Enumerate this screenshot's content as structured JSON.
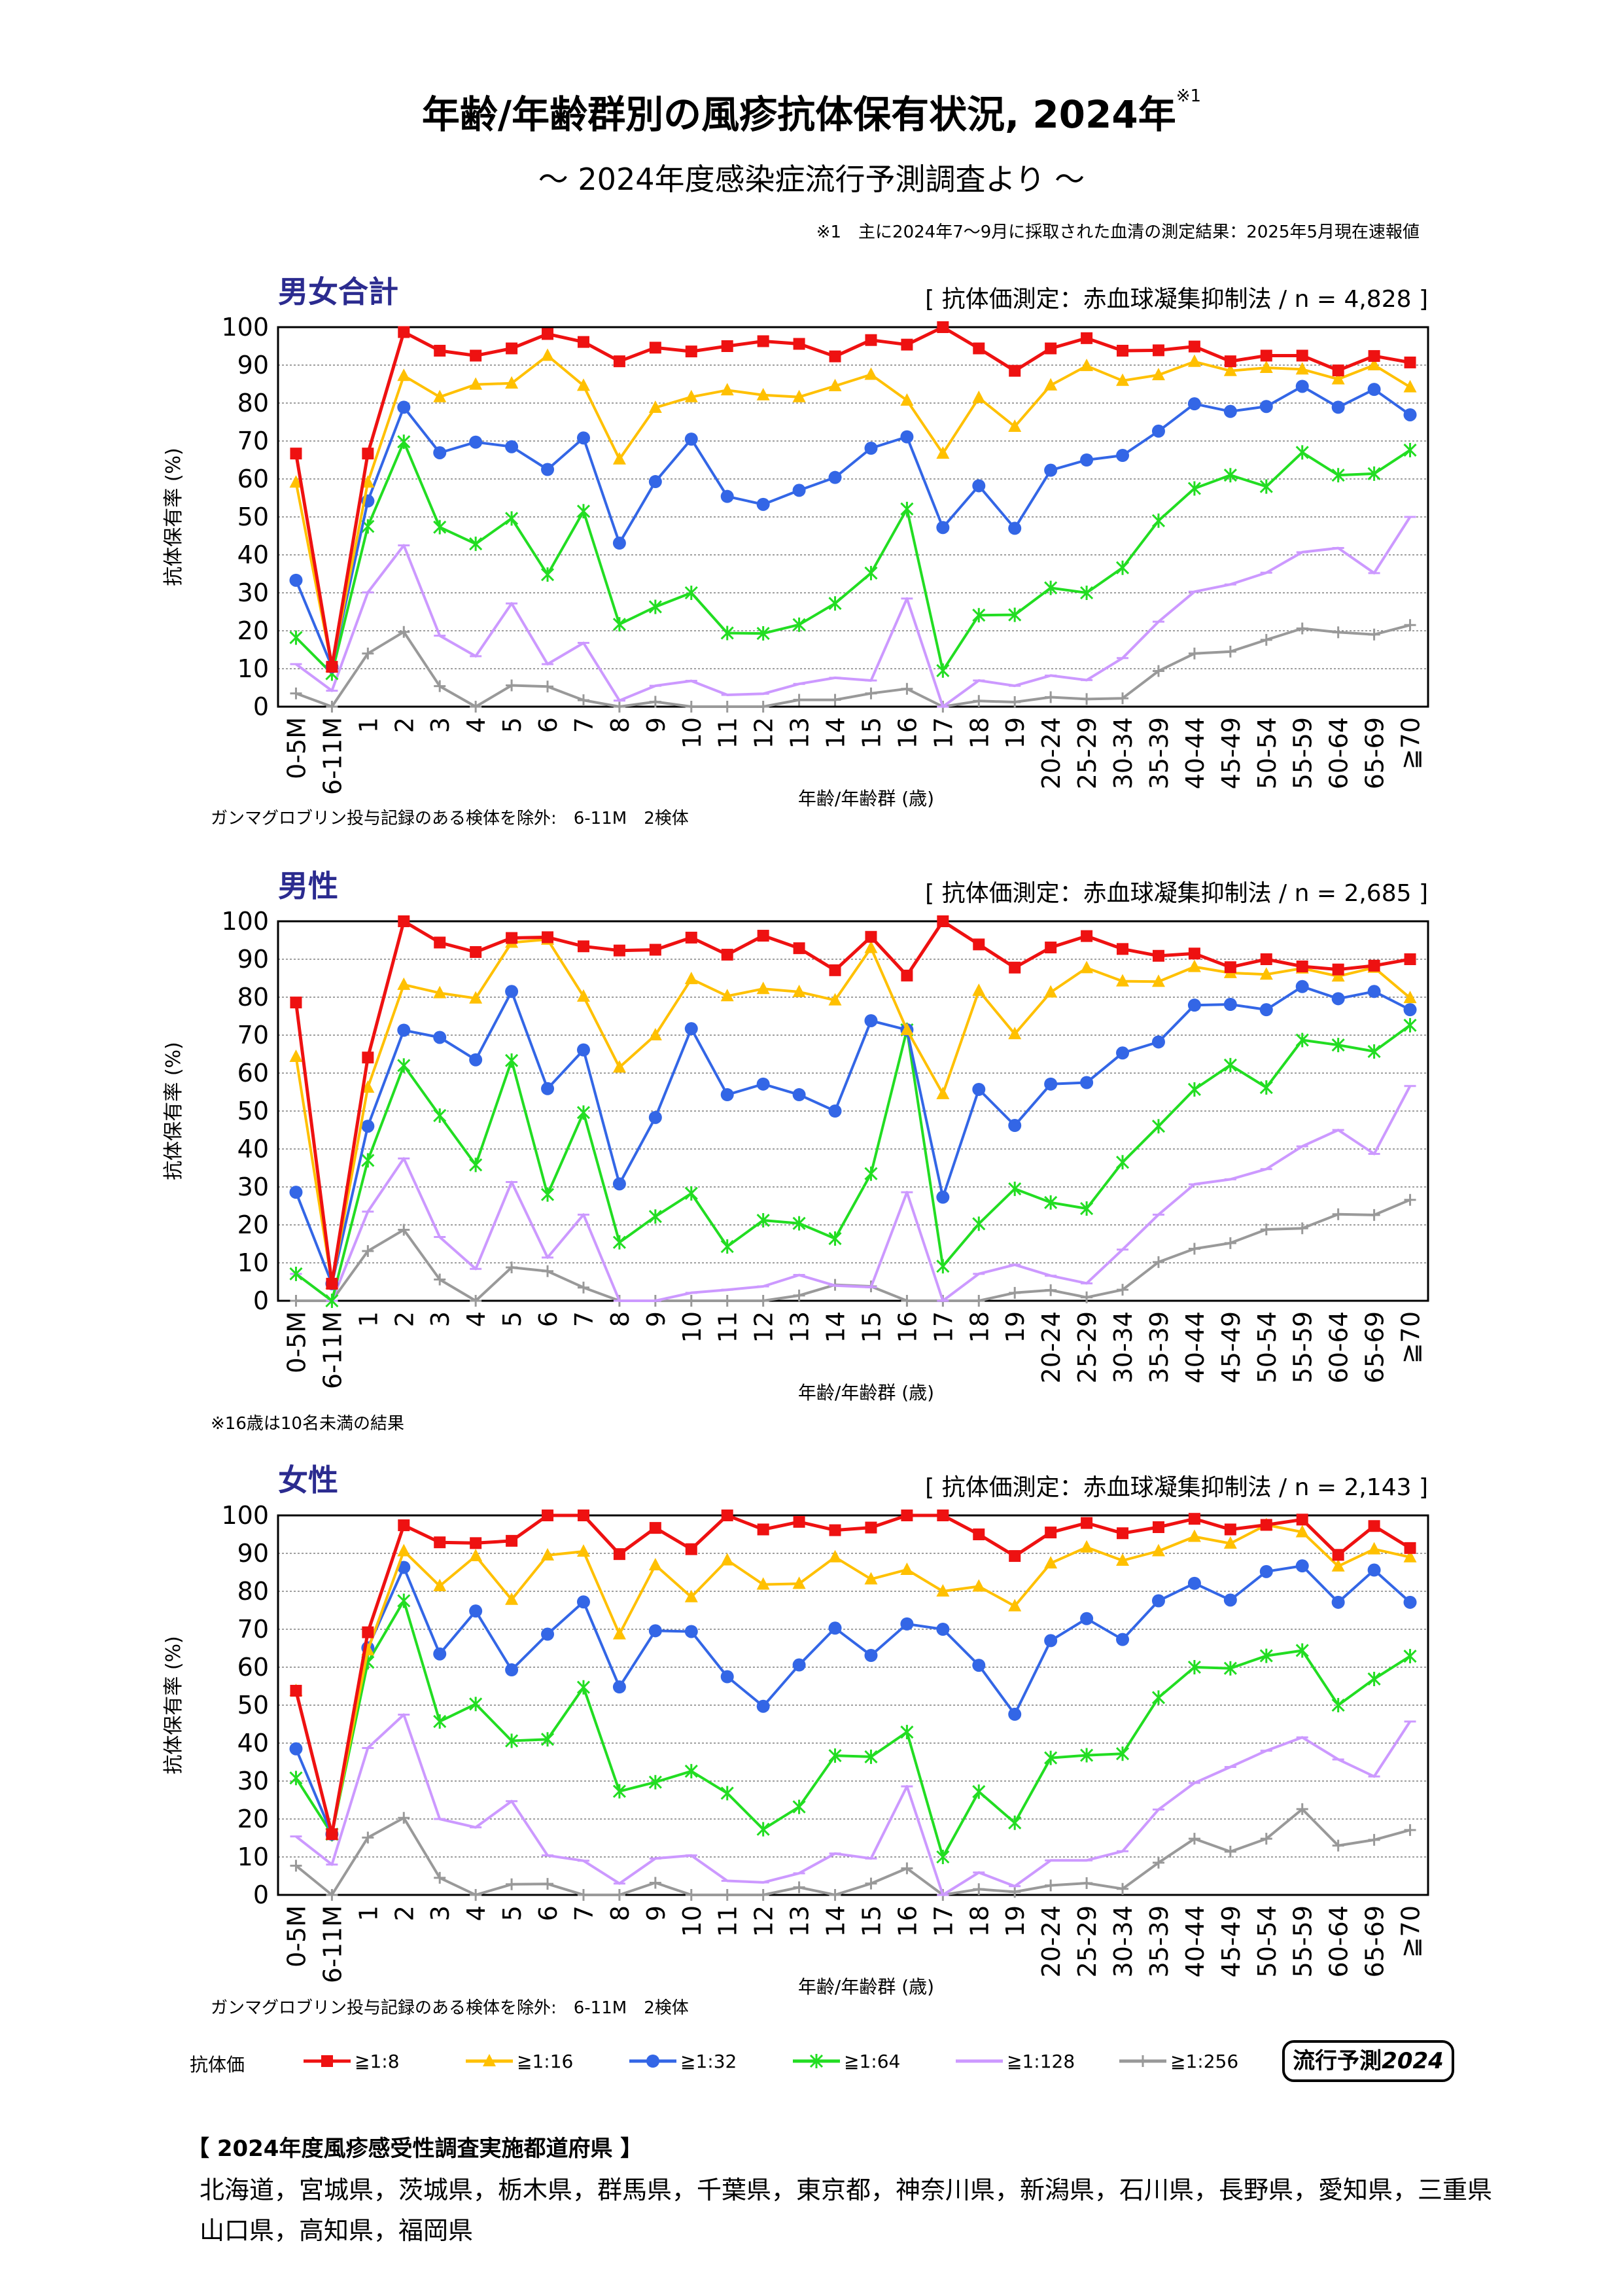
{
  "title": "年齢/年齢群別の風疹抗体保有状況, 2024年",
  "title_note_mark": "※1",
  "subtitle": "～ 2024年度感染症流行予測調査より ～",
  "note": "※1　主に2024年7～9月に採取された血清の測定結果：2025年5月現在速報値",
  "colors": {
    "s8": "#ee1111",
    "s16": "#ffc000",
    "s32": "#3366e6",
    "s64": "#22dd22",
    "s128": "#cc99ff",
    "s256": "#999999",
    "panel_title": "#2b2b8f"
  },
  "legend": {
    "title": "抗体価",
    "items": [
      "≧1:8",
      "≧1:16",
      "≧1:32",
      "≧1:64",
      "≧1:128",
      "≧1:256"
    ]
  },
  "badge": {
    "text": "流行予測",
    "year": "2024"
  },
  "prefectures": {
    "heading": "【 2024年度風疹感受性調査実施都道府県 】",
    "line1": "北海道，宮城県，茨城県，栃木県，群馬県，千葉県，東京都，神奈川県，新潟県，石川県，長野県，愛知県，三重県",
    "line2": "山口県，高知県，福岡県"
  },
  "chart_data": [
    {
      "type": "line",
      "title": "男女合計",
      "method": "[ 抗体価測定：赤血球凝集抑制法 / n = 4,828 ]",
      "xlabel": "年齢/年齢群 (歳)",
      "ylabel": "抗体保有率 (%)",
      "ylim": [
        0,
        100
      ],
      "yticks": [
        0,
        10,
        20,
        30,
        40,
        50,
        60,
        70,
        80,
        90,
        100
      ],
      "grid": true,
      "footnote": "ガンマグロブリン投与記録のある検体を除外:　6-11M　2検体",
      "categories": [
        "0-5M",
        "6-11M",
        "1",
        "2",
        "3",
        "4",
        "5",
        "6",
        "7",
        "8",
        "9",
        "10",
        "11",
        "12",
        "13",
        "14",
        "15",
        "16",
        "17",
        "18",
        "19",
        "20-24",
        "25-29",
        "30-34",
        "35-39",
        "40-44",
        "45-49",
        "50-54",
        "55-59",
        "60-64",
        "65-69",
        "≧70"
      ],
      "series": [
        {
          "name": "≧1:8",
          "values": [
            66.7,
            10.5,
            66.7,
            98.7,
            93.8,
            92.5,
            94.4,
            98.2,
            96.1,
            91,
            94.6,
            93.6,
            95,
            96.3,
            95.6,
            92.3,
            96.6,
            95.4,
            100,
            94.4,
            88.5,
            94.4,
            97.1,
            93.8,
            93.9,
            94.9,
            91,
            92.5,
            92.5,
            88.6,
            92.4,
            90.7
          ]
        },
        {
          "name": "≧1:16",
          "values": [
            59.1,
            10.5,
            59.1,
            87.2,
            81.6,
            84.9,
            85.2,
            92.5,
            84.6,
            65.2,
            78.8,
            81.6,
            83.4,
            82.1,
            81.6,
            84.5,
            87.5,
            80.7,
            66.7,
            81.4,
            73.8,
            84.7,
            89.8,
            85.9,
            87.4,
            90.9,
            88.5,
            89.3,
            88.9,
            86.3,
            90,
            84.2
          ]
        },
        {
          "name": "≧1:32",
          "values": [
            33.3,
            10.5,
            54.2,
            78.9,
            66.9,
            69.7,
            68.5,
            62.5,
            70.8,
            43.1,
            59.3,
            70.5,
            55.4,
            53.3,
            57,
            60.4,
            68.1,
            71.1,
            47.2,
            58.2,
            47,
            62.3,
            65,
            66.2,
            72.6,
            79.8,
            77.8,
            79.1,
            84.4,
            78.9,
            83.6,
            76.9
          ]
        },
        {
          "name": "≧1:64",
          "values": [
            18.2,
            8.7,
            47.5,
            69.8,
            47.3,
            42.9,
            49.6,
            34.8,
            51.5,
            21.7,
            26.3,
            30,
            19.4,
            19.3,
            21.6,
            27.2,
            35.2,
            52.1,
            9.5,
            24.1,
            24.2,
            31.3,
            30,
            36.6,
            49,
            57.5,
            61,
            58,
            67,
            61,
            61.4,
            67.6
          ]
        },
        {
          "name": "≧1:128",
          "values": [
            11.2,
            4.2,
            30.1,
            42.5,
            18.7,
            13.3,
            27.2,
            11.2,
            16.8,
            1.6,
            5.5,
            6.8,
            3.1,
            3.4,
            6,
            7.6,
            6.9,
            28.5,
            0,
            6.9,
            5.5,
            8.2,
            7,
            12.8,
            22.4,
            30.3,
            32.2,
            35.3,
            40.7,
            41.8,
            35.2,
            50
          ]
        },
        {
          "name": "≧1:256",
          "values": [
            3.5,
            0,
            14,
            19.7,
            5.4,
            0,
            5.6,
            5.3,
            1.7,
            0,
            1.3,
            0,
            0,
            0,
            1.8,
            1.8,
            3.5,
            4.7,
            0,
            1.5,
            1.2,
            2.5,
            2,
            2.2,
            9.4,
            14,
            14.5,
            17.6,
            20.6,
            19.6,
            19,
            21.5
          ]
        }
      ]
    },
    {
      "type": "line",
      "title": "男性",
      "method": "[ 抗体価測定：赤血球凝集抑制法 / n = 2,685 ]",
      "xlabel": "年齢/年齢群 (歳)",
      "ylabel": "抗体保有率 (%)",
      "ylim": [
        0,
        100
      ],
      "yticks": [
        0,
        10,
        20,
        30,
        40,
        50,
        60,
        70,
        80,
        90,
        100
      ],
      "grid": true,
      "footnote": "※16歳は10名未満の結果",
      "categories": [
        "0-5M",
        "6-11M",
        "1",
        "2",
        "3",
        "4",
        "5",
        "6",
        "7",
        "8",
        "9",
        "10",
        "11",
        "12",
        "13",
        "14",
        "15",
        "16",
        "17",
        "18",
        "19",
        "20-24",
        "25-29",
        "30-34",
        "35-39",
        "40-44",
        "45-49",
        "50-54",
        "55-59",
        "60-64",
        "65-69",
        "≧70"
      ],
      "series": [
        {
          "name": "≧1:8",
          "values": [
            78.6,
            4.5,
            64.1,
            100,
            94.4,
            91.9,
            95.6,
            95.8,
            93.4,
            92.3,
            92.5,
            95.7,
            91.2,
            96.2,
            92.9,
            87.1,
            95.9,
            85.7,
            100,
            93.9,
            87.8,
            93.1,
            96.1,
            92.7,
            90.9,
            91.5,
            87.9,
            90,
            88.1,
            87.3,
            88.3,
            90
          ]
        },
        {
          "name": "≧1:16",
          "values": [
            64.3,
            4.5,
            56.2,
            83.3,
            81.1,
            79.7,
            94.4,
            95.2,
            80.2,
            61.5,
            70,
            84.8,
            80.3,
            82.2,
            81.4,
            79.2,
            93,
            71.4,
            54.5,
            81.7,
            70.3,
            81.3,
            87.7,
            84.2,
            84.1,
            88,
            86.4,
            86,
            87.6,
            85.5,
            87.8,
            79.8
          ]
        },
        {
          "name": "≧1:32",
          "values": [
            28.6,
            4.5,
            46,
            71.3,
            69.4,
            63.5,
            81.5,
            55.9,
            66.1,
            30.8,
            48.3,
            71.7,
            54.3,
            57.1,
            54.3,
            50,
            73.8,
            71.4,
            27.3,
            55.7,
            46.2,
            57.1,
            57.5,
            65.3,
            68.2,
            77.9,
            78.1,
            76.7,
            82.8,
            79.6,
            81.5,
            76.7
          ]
        },
        {
          "name": "≧1:64",
          "values": [
            7.1,
            0,
            37,
            62,
            48.8,
            35.8,
            63.3,
            28,
            49.6,
            15.4,
            22.2,
            28.3,
            14.3,
            21.2,
            20.4,
            16.4,
            33.5,
            71.4,
            9.1,
            20.3,
            29.5,
            25.9,
            24.3,
            36.5,
            46,
            55.7,
            62.1,
            56.2,
            68.7,
            67.4,
            65.7,
            72.6
          ]
        },
        {
          "name": "≧1:128",
          "values": [
            7.1,
            0,
            23.5,
            37.5,
            16.8,
            8.4,
            31.3,
            11.4,
            22.7,
            0,
            0,
            2.1,
            2.9,
            3.8,
            6.8,
            4,
            3.6,
            28.6,
            0,
            7.1,
            9.5,
            6.6,
            4.6,
            13.5,
            22.7,
            30.7,
            32,
            34.7,
            40.7,
            45,
            38.7,
            56.6
          ]
        },
        {
          "name": "≧1:256",
          "values": [
            0,
            0,
            13.1,
            18.7,
            5.6,
            0,
            8.8,
            7.8,
            3.5,
            0,
            0,
            0,
            0,
            0,
            1.4,
            4.2,
            3.8,
            0,
            0,
            0,
            2.1,
            2.8,
            0.9,
            2.9,
            10.2,
            13.7,
            15.2,
            18.8,
            19.1,
            22.8,
            22.6,
            26.6
          ]
        }
      ]
    },
    {
      "type": "line",
      "title": "女性",
      "method": "[ 抗体価測定：赤血球凝集抑制法 / n = 2,143 ]",
      "xlabel": "年齢/年齢群 (歳)",
      "ylabel": "抗体保有率 (%)",
      "ylim": [
        0,
        100
      ],
      "yticks": [
        0,
        10,
        20,
        30,
        40,
        50,
        60,
        70,
        80,
        90,
        100
      ],
      "grid": true,
      "footnote": "ガンマグロブリン投与記録のある検体を除外:　6-11M　2検体",
      "categories": [
        "0-5M",
        "6-11M",
        "1",
        "2",
        "3",
        "4",
        "5",
        "6",
        "7",
        "8",
        "9",
        "10",
        "11",
        "12",
        "13",
        "14",
        "15",
        "16",
        "17",
        "18",
        "19",
        "20-24",
        "25-29",
        "30-34",
        "35-39",
        "40-44",
        "45-49",
        "50-54",
        "55-59",
        "60-64",
        "65-69",
        "≧70"
      ],
      "series": [
        {
          "name": "≧1:8",
          "values": [
            53.8,
            16,
            69.2,
            97.4,
            92.9,
            92.7,
            93.3,
            100,
            100,
            89.8,
            96.7,
            91.1,
            100,
            96.3,
            98.3,
            96.1,
            96.8,
            100,
            100,
            95,
            89.3,
            95.5,
            98,
            95.3,
            96.9,
            99.1,
            96.3,
            97.5,
            98.9,
            89.6,
            97.2,
            91.4
          ]
        },
        {
          "name": "≧1:16",
          "values": [
            53.8,
            16,
            64.5,
            90.6,
            81.4,
            89.3,
            77.8,
            89.5,
            90.5,
            68.7,
            86.9,
            78.5,
            88.2,
            81.8,
            82,
            89,
            83.2,
            85.7,
            80,
            81.3,
            76.1,
            87.4,
            91.6,
            88.1,
            90.6,
            94.4,
            92.6,
            97.5,
            95.6,
            86.6,
            91.1,
            89
          ]
        },
        {
          "name": "≧1:32",
          "values": [
            38.5,
            16,
            65.1,
            86.3,
            63.5,
            74.8,
            59.3,
            68.7,
            77.2,
            54.8,
            69.6,
            69.4,
            57.5,
            49.7,
            60.6,
            70.3,
            63.1,
            71.4,
            70,
            60.5,
            47.6,
            67,
            72.8,
            67.3,
            77.5,
            82.1,
            77.7,
            85.2,
            86.7,
            77.1,
            85.6,
            77.1
          ]
        },
        {
          "name": "≧1:64",
          "values": [
            30.8,
            16,
            61.3,
            77.5,
            45.7,
            50.3,
            40.6,
            41,
            54.7,
            27.3,
            29.7,
            32.6,
            26.8,
            17.3,
            23.2,
            36.7,
            36.4,
            42.9,
            10,
            27.2,
            19,
            36.1,
            36.8,
            37.2,
            52,
            60,
            59.7,
            63,
            64.4,
            50,
            56.9,
            62.9
          ]
        },
        {
          "name": "≧1:128",
          "values": [
            15.4,
            8,
            38.7,
            47.5,
            20,
            17.8,
            24.7,
            10.4,
            9,
            3,
            9.6,
            10.4,
            3.7,
            3.3,
            5.7,
            10.9,
            9.6,
            28.6,
            0,
            5.9,
            2.3,
            9.1,
            9.1,
            11.5,
            22.5,
            29.5,
            33.7,
            38,
            41.5,
            35.7,
            31.2,
            45.7
          ]
        },
        {
          "name": "≧1:256",
          "values": [
            7.7,
            0,
            15.1,
            20.3,
            4.5,
            0,
            2.8,
            2.9,
            0,
            0,
            3.2,
            0,
            0,
            0,
            2,
            0,
            3,
            7,
            0,
            1.5,
            0.8,
            2.5,
            3.1,
            1.6,
            8.5,
            14.8,
            11.4,
            14.8,
            22.6,
            13,
            14.5,
            17.1
          ]
        }
      ]
    }
  ]
}
